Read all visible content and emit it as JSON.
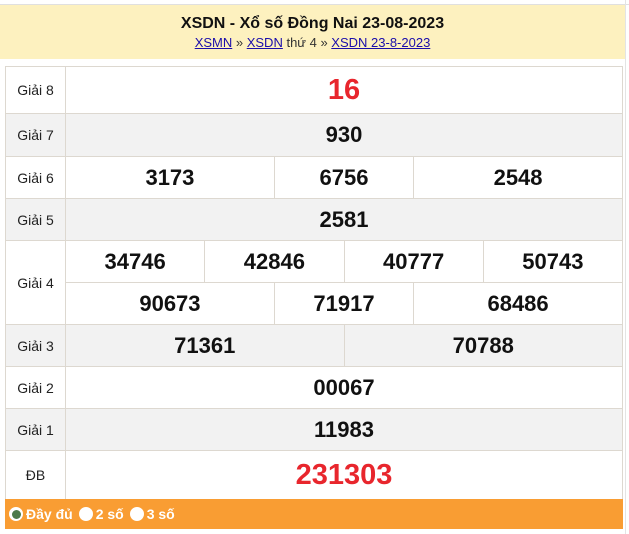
{
  "header": {
    "title": "XSDN - Xổ số Đồng Nai 23-08-2023",
    "breadcrumb": {
      "link1": "XSMN",
      "sep1": " » ",
      "link2": "XSDN",
      "text": " thứ 4 » ",
      "link3": "XSDN 23-8-2023"
    }
  },
  "results": {
    "g8": {
      "label": "Giải 8",
      "numbers": [
        "16"
      ]
    },
    "g7": {
      "label": "Giải 7",
      "numbers": [
        "930"
      ]
    },
    "g6": {
      "label": "Giải 6",
      "numbers": [
        "3173",
        "6756",
        "2548"
      ]
    },
    "g5": {
      "label": "Giải 5",
      "numbers": [
        "2581"
      ]
    },
    "g4": {
      "label": "Giải 4",
      "numbers": [
        "34746",
        "42846",
        "40777",
        "50743",
        "90673",
        "71917",
        "68486"
      ]
    },
    "g3": {
      "label": "Giải 3",
      "numbers": [
        "71361",
        "70788"
      ]
    },
    "g2": {
      "label": "Giải 2",
      "numbers": [
        "00067"
      ]
    },
    "g1": {
      "label": "Giải 1",
      "numbers": [
        "11983"
      ]
    },
    "db": {
      "label": "ĐB",
      "numbers": [
        "231303"
      ]
    }
  },
  "footer": {
    "options": [
      "Đầy đủ",
      "2 số",
      "3 số"
    ],
    "selected": "Đầy đủ"
  },
  "colors": {
    "header_bg": "#fdf1bf",
    "footer_bg": "#f99d33",
    "highlight": "#e8262d",
    "alt_row": "#f2f2f2"
  }
}
